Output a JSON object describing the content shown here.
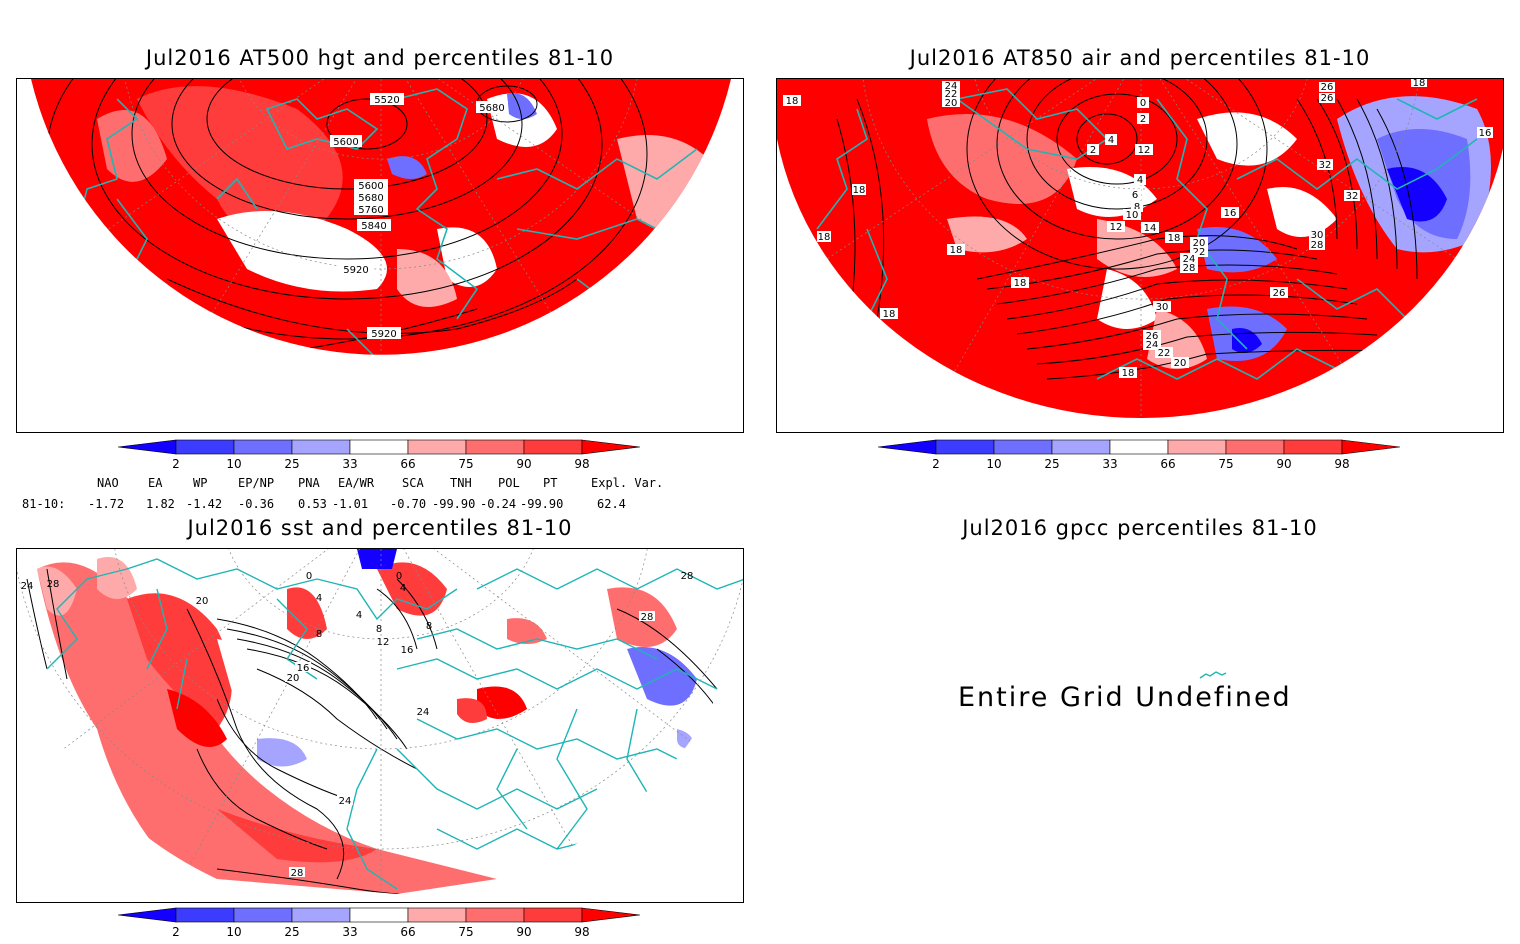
{
  "panels": {
    "hgt500": {
      "title": "Jul2016 AT500 hgt and percentiles 81-10",
      "contour_labels": [
        "5520",
        "5680",
        "5600",
        "5600",
        "5680",
        "5760",
        "5840",
        "5920",
        "5920"
      ]
    },
    "air850": {
      "title": "Jul2016 AT850 air and percentiles 81-10",
      "contour_labels": [
        "24",
        "22",
        "20",
        "18",
        "0",
        "2",
        "4",
        "2",
        "12",
        "4",
        "6",
        "8",
        "10",
        "12",
        "14",
        "16",
        "18",
        "20",
        "22",
        "24",
        "28",
        "26",
        "30",
        "26",
        "24",
        "22",
        "20",
        "18",
        "18",
        "18",
        "18",
        "18",
        "18",
        "16",
        "32",
        "32",
        "30",
        "28",
        "26",
        "26",
        "18"
      ]
    },
    "sst": {
      "title": "Jul2016 sst and percentiles 81-10",
      "contour_labels": [
        "24",
        "28",
        "20",
        "0",
        "4",
        "8",
        "4",
        "8",
        "12",
        "16",
        "16",
        "20",
        "24",
        "24",
        "28",
        "28",
        "28",
        "0",
        "4",
        "8"
      ]
    },
    "gpcc": {
      "title": "Jul2016 gpcc percentiles 81-10",
      "message": "Entire Grid Undefined"
    }
  },
  "colorbar": {
    "ticks": [
      "2",
      "10",
      "25",
      "33",
      "66",
      "75",
      "90",
      "98"
    ],
    "colors": [
      "#1400ff",
      "#3c3cff",
      "#6e6eff",
      "#a5a5ff",
      "#ffffff",
      "#ffaaaa",
      "#ff6e6e",
      "#ff3c3c",
      "#ff0000"
    ]
  },
  "indices": {
    "header": [
      "NAO",
      "EA",
      "WP",
      "EP/NP",
      "PNA",
      "EA/WR",
      "SCA",
      "TNH",
      "POL",
      "PT",
      "Expl. Var."
    ],
    "row_label": "81-10:",
    "values": [
      "-1.72",
      "1.82",
      "-1.42",
      "-0.36",
      "0.53",
      "-1.01",
      "-0.70",
      "-99.90",
      "-0.24",
      "-99.90",
      "62.4"
    ]
  }
}
